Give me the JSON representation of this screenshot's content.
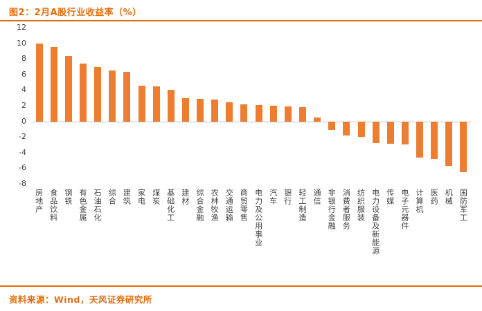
{
  "header": {
    "title": "图2：2月A股行业收益率（%）"
  },
  "footer": {
    "source": "资料来源：Wind，天风证券研究所"
  },
  "colors": {
    "accent": "#E36C09",
    "bar": "#ED7D31",
    "axis_text": "#404040",
    "zero_line": "#BFBFBF",
    "background": "#FFFFFF"
  },
  "chart_data": {
    "type": "bar",
    "title": "2月A股行业收益率（%）",
    "xlabel": "",
    "ylabel": "",
    "ylim": [
      -8,
      12
    ],
    "yticks": [
      12,
      10,
      8,
      6,
      4,
      2,
      0,
      -2,
      -4,
      -6,
      -8
    ],
    "grid": false,
    "legend": false,
    "bar_color": "#ED7D31",
    "categories": [
      "房地产",
      "食品饮料",
      "钢铁",
      "有色金属",
      "石油石化",
      "综合",
      "建筑",
      "家电",
      "煤炭",
      "基础化工",
      "建材",
      "综合金融",
      "农林牧渔",
      "交通运输",
      "商贸零售",
      "电力及公用事业",
      "汽车",
      "银行",
      "轻工制造",
      "通信",
      "非银行金融",
      "消费者服务",
      "纺织服装",
      "电力设备及新能源",
      "传媒",
      "电子元器件",
      "计算机",
      "医药",
      "机械",
      "国防军工"
    ],
    "values": [
      10.0,
      9.5,
      8.4,
      7.4,
      7.0,
      6.5,
      6.3,
      4.6,
      4.5,
      4.0,
      3.0,
      2.9,
      2.8,
      2.4,
      2.2,
      2.1,
      2.0,
      1.9,
      1.8,
      0.5,
      -1.1,
      -1.8,
      -2.0,
      -2.8,
      -2.9,
      -3.0,
      -4.6,
      -4.8,
      -5.7,
      -6.5
    ]
  }
}
